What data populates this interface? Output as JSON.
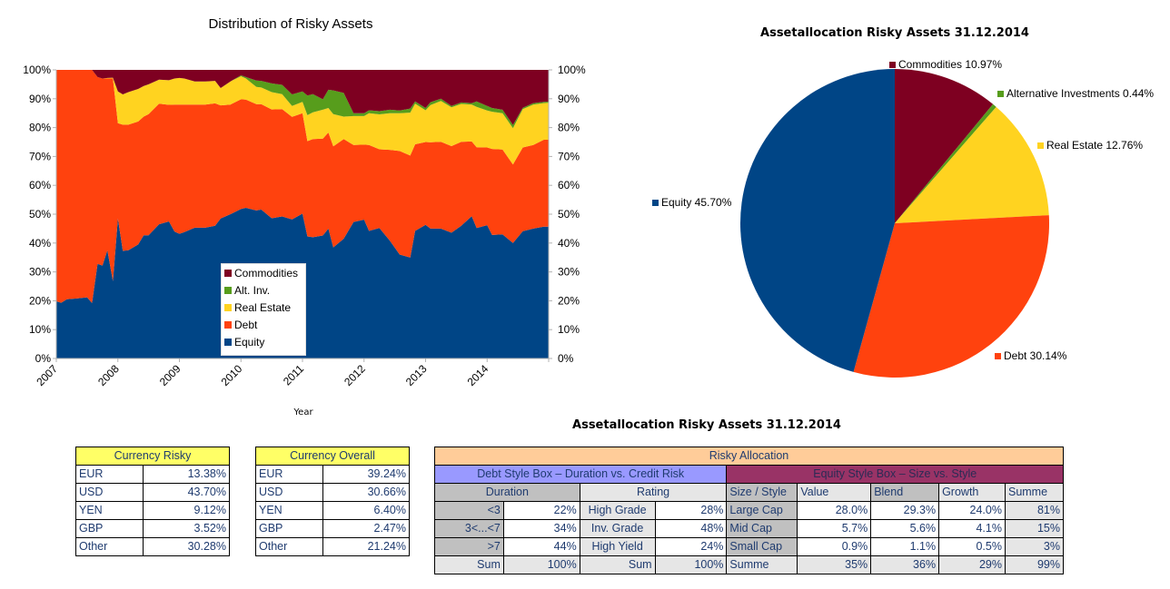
{
  "area_chart": {
    "title": "Distribution of Risky Assets",
    "xlabel": "Year",
    "legend": [
      "Commodities",
      "Alt. Inv.",
      "Real Estate",
      "Debt",
      "Equity"
    ]
  },
  "pie_chart": {
    "title": "Assetallocation Risky Assets 31.12.2014",
    "labels": [
      "Commodities 10.97%",
      "Alternative Investments 0.44%",
      "Real Estate 12.76%",
      "Debt 30.14%",
      "Equity 45.70%"
    ]
  },
  "chart_data": [
    {
      "type": "area",
      "stacked": true,
      "percent_stacked": true,
      "title": "Distribution of Risky Assets",
      "xlabel": "Year",
      "ylabel": "",
      "ylim": [
        0,
        100
      ],
      "yticks": [
        "0%",
        "10%",
        "20%",
        "30%",
        "40%",
        "50%",
        "60%",
        "70%",
        "80%",
        "90%",
        "100%"
      ],
      "xticks": [
        "2007",
        "2008",
        "2009",
        "2010",
        "2011",
        "2012",
        "2013",
        "2014"
      ],
      "xlim": [
        2007,
        2015
      ],
      "grid": false,
      "legend_position": "center-bottom",
      "colors": {
        "Equity": "#004586",
        "Debt": "#ff420e",
        "Real Estate": "#ffd320",
        "Alt. Inv.": "#579d1c",
        "Commodities": "#7e0021"
      },
      "x": [
        2007.0,
        2007.08,
        2007.17,
        2007.33,
        2007.5,
        2007.58,
        2007.67,
        2007.75,
        2007.83,
        2007.92,
        2008.0,
        2008.08,
        2008.17,
        2008.33,
        2008.42,
        2008.5,
        2008.67,
        2008.83,
        2008.92,
        2009.0,
        2009.08,
        2009.25,
        2009.42,
        2009.58,
        2009.67,
        2009.83,
        2010.0,
        2010.08,
        2010.25,
        2010.33,
        2010.5,
        2010.67,
        2010.83,
        2011.0,
        2011.08,
        2011.17,
        2011.33,
        2011.42,
        2011.5,
        2011.67,
        2011.83,
        2012.0,
        2012.08,
        2012.25,
        2012.42,
        2012.58,
        2012.75,
        2012.83,
        2013.0,
        2013.08,
        2013.25,
        2013.42,
        2013.58,
        2013.75,
        2013.83,
        2014.0,
        2014.08,
        2014.25,
        2014.42,
        2014.58,
        2014.75,
        2014.92,
        2015.0
      ],
      "series": [
        {
          "name": "Equity",
          "values": [
            19.8,
            19.3,
            20.5,
            20.8,
            21.2,
            19.2,
            32.8,
            32.2,
            37.5,
            26.8,
            48.5,
            37.3,
            37.5,
            39.5,
            42.7,
            42.7,
            46.5,
            47.5,
            44.0,
            43.2,
            43.8,
            45.3,
            45.3,
            46.0,
            48.5,
            50.0,
            51.8,
            52.2,
            51.3,
            51.6,
            48.6,
            49.2,
            48.2,
            50.2,
            42.3,
            42.0,
            42.6,
            45.0,
            38.5,
            41.5,
            47.3,
            48.1,
            44.2,
            45.2,
            40.8,
            36.0,
            35.0,
            44.2,
            46.3,
            45.0,
            45.0,
            43.6,
            46.0,
            49.3,
            45.2,
            46.2,
            42.8,
            43.0,
            40.0,
            44.1,
            45.0,
            45.7,
            45.7
          ]
        },
        {
          "name": "Debt",
          "values": [
            80.2,
            80.7,
            79.5,
            79.2,
            78.8,
            80.8,
            64.7,
            64.8,
            59.5,
            70.2,
            33.0,
            43.7,
            43.5,
            42.6,
            41.1,
            42.0,
            41.8,
            40.4,
            44.0,
            44.8,
            44.2,
            42.7,
            42.7,
            42.4,
            39.2,
            38.0,
            38.0,
            37.5,
            36.8,
            36.5,
            37.7,
            37.2,
            35.5,
            34.8,
            33.0,
            34.0,
            33.6,
            33.3,
            35.0,
            34.5,
            26.7,
            26.0,
            29.8,
            27.3,
            31.5,
            35.9,
            35.3,
            30.0,
            28.7,
            29.9,
            30.1,
            30.0,
            29.1,
            25.9,
            28.0,
            26.9,
            29.8,
            29.4,
            27.2,
            29.0,
            29.0,
            30.1,
            30.1
          ]
        },
        {
          "name": "Real Estate",
          "values": [
            0,
            0,
            0,
            0,
            0,
            0,
            0,
            0,
            0.2,
            0.3,
            11.0,
            10.5,
            11.3,
            11.3,
            10.6,
            10.3,
            8.3,
            8.5,
            9.0,
            9.2,
            9.0,
            8.0,
            8.0,
            7.8,
            6.0,
            8.0,
            8.0,
            7.3,
            6.0,
            5.8,
            6.0,
            5.2,
            3.8,
            3.9,
            9.0,
            9.3,
            10.0,
            8.5,
            11.2,
            7.8,
            10.0,
            9.9,
            11.0,
            12.1,
            12.7,
            13.1,
            14.9,
            14.1,
            11.0,
            12.9,
            14.1,
            13.4,
            13.1,
            12.8,
            14.0,
            12.8,
            12.9,
            12.6,
            12.6,
            13.3,
            14.0,
            12.7,
            12.8
          ]
        },
        {
          "name": "Alt. Inv.",
          "values": [
            0,
            0,
            0,
            0,
            0,
            0,
            0,
            0,
            0,
            0,
            0,
            0,
            0,
            0,
            0,
            0,
            0,
            0,
            0,
            0,
            0,
            0,
            0,
            0,
            0,
            0,
            0.3,
            0.5,
            2.2,
            2.3,
            3.0,
            3.2,
            4.0,
            3.6,
            6.8,
            6.3,
            3.6,
            6.3,
            8.2,
            8.2,
            1.0,
            1.0,
            1.0,
            1.1,
            1.2,
            0.9,
            1.4,
            0.8,
            0.8,
            1.0,
            0.8,
            0.5,
            0.5,
            0.5,
            1.9,
            1.6,
            1.3,
            1.2,
            1.1,
            0.5,
            0.5,
            0.4,
            0.4
          ]
        },
        {
          "name": "Commodities",
          "values": [
            0,
            0,
            0,
            0,
            0,
            0,
            2.5,
            3.0,
            2.8,
            2.7,
            7.5,
            8.5,
            7.7,
            6.6,
            5.6,
            5.0,
            3.4,
            3.6,
            3.0,
            2.8,
            3.0,
            4.0,
            4.0,
            3.8,
            6.3,
            4.0,
            1.9,
            2.5,
            3.7,
            3.8,
            4.7,
            5.2,
            8.5,
            7.5,
            8.9,
            8.4,
            10.2,
            6.9,
            7.1,
            8.0,
            15.0,
            15.0,
            14.0,
            14.3,
            13.8,
            14.1,
            13.4,
            10.9,
            13.2,
            11.2,
            10.0,
            12.5,
            11.3,
            11.5,
            10.9,
            12.5,
            13.2,
            13.8,
            19.1,
            13.1,
            11.5,
            11.1,
            11.0
          ]
        }
      ]
    },
    {
      "type": "pie",
      "title": "Assetallocation Risky Assets 31.12.2014",
      "categories": [
        "Commodities",
        "Alternative Investments",
        "Real Estate",
        "Debt",
        "Equity"
      ],
      "values": [
        10.97,
        0.44,
        12.76,
        30.14,
        45.7
      ],
      "colors": [
        "#7e0021",
        "#579d1c",
        "#ffd320",
        "#ff420e",
        "#004586"
      ],
      "data_labels": [
        "Commodities 10.97%",
        "Alternative Investments 0.44%",
        "Real Estate 12.76%",
        "Debt 30.14%",
        "Equity 45.70%"
      ]
    }
  ],
  "currency_risky": {
    "title": "Currency Risky",
    "rows": [
      {
        "currency": "EUR",
        "value": "13.38%"
      },
      {
        "currency": "USD",
        "value": "43.70%"
      },
      {
        "currency": "YEN",
        "value": "9.12%"
      },
      {
        "currency": "GBP",
        "value": "3.52%"
      },
      {
        "currency": "Other",
        "value": "30.28%"
      }
    ]
  },
  "currency_overall": {
    "title": "Currency Overall",
    "rows": [
      {
        "currency": "EUR",
        "value": "39.24%"
      },
      {
        "currency": "USD",
        "value": "30.66%"
      },
      {
        "currency": "YEN",
        "value": "6.40%"
      },
      {
        "currency": "GBP",
        "value": "2.47%"
      },
      {
        "currency": "Other",
        "value": "21.24%"
      }
    ]
  },
  "allocation": {
    "title": "Assetallocation Risky Assets 31.12.2014",
    "header": "Risky Allocation",
    "debt_box_title": "Debt Style Box – Duration vs. Credit Risk",
    "equity_box_title": "Equity Style Box – Size vs. Style",
    "duration_header": "Duration",
    "rating_header": "Rating",
    "equity_headers": [
      "Size / Style",
      "Value",
      "Blend",
      "Growth",
      "Summe"
    ],
    "rows": [
      {
        "dur": "<3",
        "dur_val": "22%",
        "rating": "High Grade",
        "rating_val": "28%",
        "size": "Large Cap",
        "value": "28.0%",
        "blend": "29.3%",
        "growth": "24.0%",
        "sum": "81%"
      },
      {
        "dur": "3<...<7",
        "dur_val": "34%",
        "rating": "Inv. Grade",
        "rating_val": "48%",
        "size": "Mid Cap",
        "value": "5.7%",
        "blend": "5.6%",
        "growth": "4.1%",
        "sum": "15%"
      },
      {
        "dur": ">7",
        "dur_val": "44%",
        "rating": "High Yield",
        "rating_val": "24%",
        "size": "Small Cap",
        "value": "0.9%",
        "blend": "1.1%",
        "growth": "0.5%",
        "sum": "3%"
      },
      {
        "dur": "Sum",
        "dur_val": "100%",
        "rating": "Sum",
        "rating_val": "100%",
        "size": "Summe",
        "value": "35%",
        "blend": "36%",
        "growth": "29%",
        "sum": "99%"
      }
    ]
  }
}
